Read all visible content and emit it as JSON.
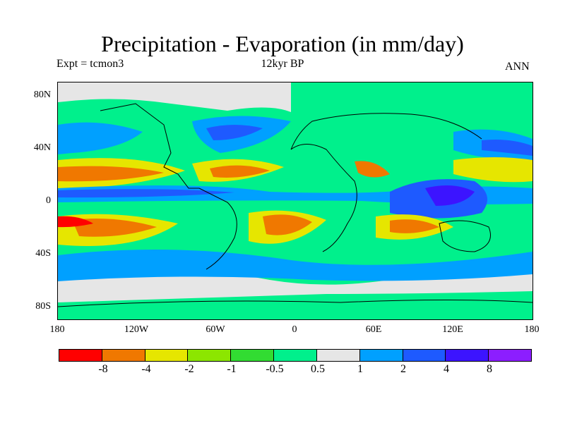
{
  "header": {
    "title": "Precipitation - Evaporation (in mm/day)",
    "experiment": "Expt = tcmon3",
    "era": "12kyr BP",
    "season": "ANN"
  },
  "axes": {
    "lat_labels": [
      "80N",
      "40N",
      "0",
      "40S",
      "80S"
    ],
    "lon_labels": [
      "180",
      "120W",
      "60W",
      "0",
      "60E",
      "120E",
      "180"
    ]
  },
  "colorbar": {
    "colors": [
      "#ff0000",
      "#f07800",
      "#e6e600",
      "#8ce600",
      "#32dc32",
      "#00f08c",
      "#e6e6e6",
      "#00a0ff",
      "#1e5aff",
      "#3c14ff",
      "#8c1eff"
    ],
    "labels": [
      "-8",
      "-4",
      "-2",
      "-1",
      "-0.5",
      "0.5",
      "1",
      "2",
      "4",
      "8"
    ]
  },
  "map_colors": {
    "ocean_base": "#00f08c",
    "wet_tropics": "#3c14ff",
    "subtropical_dry": "#f07800",
    "coast": "#000000"
  }
}
